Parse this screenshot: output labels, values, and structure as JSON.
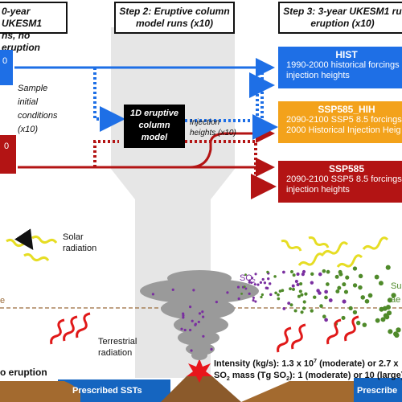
{
  "headers": {
    "step1_line1": "0-year UKESM1",
    "step1_line2": "ns, no eruption",
    "step2_line1": "Step 2: Eruptive column",
    "step2_line2": "model runs (x10)",
    "step3_line1": "Step 3: 3-year UKESM1 ru",
    "step3_line2": "eruption (x10)"
  },
  "left_boxes": {
    "blue": "0",
    "red": "0"
  },
  "sample_text": [
    "Sample",
    "initial",
    "conditions",
    "(x10)"
  ],
  "model_box": [
    "1D eruptive",
    "column",
    "model"
  ],
  "injection_text": [
    "Injection",
    "heights (x10)"
  ],
  "scenarios": [
    {
      "title": "HIST",
      "lines": [
        "1990-2000 historical forcings",
        "injection heights"
      ],
      "color": "#1e6fe6"
    },
    {
      "title": "SSP585_HIH",
      "lines": [
        "2090-2100 SSP5 8.5 forcings",
        "2000 Historical Injection Heig"
      ],
      "color": "#f3a21b"
    },
    {
      "title": "SSP585",
      "lines": [
        "2090-2100 SSP5 8.5 forcings",
        "injection heights"
      ],
      "color": "#b31414"
    }
  ],
  "lower": {
    "solar": [
      "Solar",
      "radiation"
    ],
    "terrestrial": [
      "Terrestrial",
      "radiation"
    ],
    "no_eruption": "o eruption",
    "so2": "SO",
    "so2_sub": "2",
    "sulfate": [
      "Su",
      "ae"
    ],
    "tropopause_label": "e",
    "intensity_a": "Intensity (kg/s): 1.3 x 10",
    "intensity_exp": "7",
    "intensity_b": " (moderate) or 2.7 x",
    "mass_a": "SO",
    "mass_sub": "2",
    "mass_b": " mass (Tg SO",
    "mass_sub2": "2",
    "mass_c": "): 1 (moderate) or 10 (large)",
    "prescribed_left": "Prescribed SSTs",
    "prescribed_right": "Prescribe"
  },
  "colors": {
    "blue": "#1e6fe6",
    "red": "#b31414",
    "orange": "#f3a21b",
    "plume": "#999999",
    "purple": "#7a2fa0",
    "green": "#4f8a2a",
    "ocean": "#1565c0",
    "ground": "#8b5a2b"
  }
}
